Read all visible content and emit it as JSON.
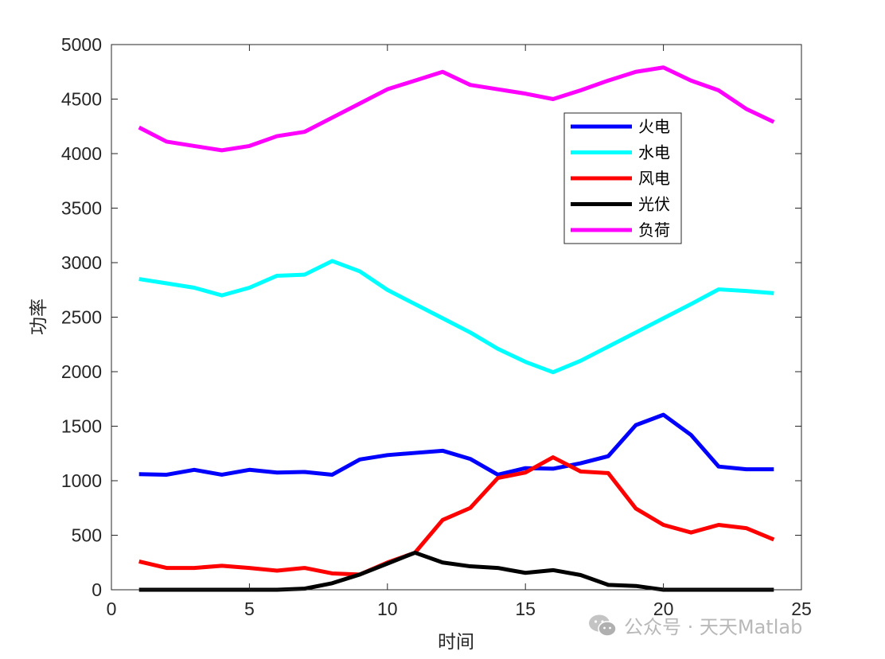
{
  "chart_data": {
    "type": "line",
    "xlabel": "时间",
    "ylabel": "功率",
    "xlim": [
      0,
      25
    ],
    "ylim": [
      0,
      5000
    ],
    "xticks": [
      0,
      5,
      10,
      15,
      20,
      25
    ],
    "yticks": [
      0,
      500,
      1000,
      1500,
      2000,
      2500,
      3000,
      3500,
      4000,
      4500,
      5000
    ],
    "grid": false,
    "legend_position": "upper-right-inside",
    "x": [
      1,
      2,
      3,
      4,
      5,
      6,
      7,
      8,
      9,
      10,
      11,
      12,
      13,
      14,
      15,
      16,
      17,
      18,
      19,
      20,
      21,
      22,
      23,
      24
    ],
    "series": [
      {
        "name": "火电",
        "color": "#0000ff",
        "values": [
          1060,
          1055,
          1100,
          1055,
          1100,
          1075,
          1080,
          1055,
          1195,
          1235,
          1255,
          1275,
          1200,
          1055,
          1115,
          1110,
          1160,
          1225,
          1510,
          1605,
          1420,
          1130,
          1105,
          1105
        ]
      },
      {
        "name": "水电",
        "color": "#00ffff",
        "values": [
          2850,
          2810,
          2770,
          2700,
          2770,
          2880,
          2890,
          3015,
          2920,
          2750,
          2620,
          2490,
          2360,
          2210,
          2090,
          1995,
          2100,
          2230,
          2360,
          2490,
          2620,
          2755,
          2740,
          2720
        ]
      },
      {
        "name": "风电",
        "color": "#ff0000",
        "values": [
          260,
          200,
          200,
          220,
          200,
          175,
          200,
          150,
          140,
          250,
          340,
          640,
          750,
          1025,
          1075,
          1215,
          1085,
          1070,
          745,
          595,
          525,
          595,
          565,
          460
        ]
      },
      {
        "name": "光伏",
        "color": "#000000",
        "values": [
          0,
          0,
          0,
          0,
          0,
          0,
          10,
          60,
          140,
          240,
          340,
          250,
          215,
          200,
          155,
          180,
          135,
          45,
          35,
          0,
          0,
          0,
          0,
          0
        ]
      },
      {
        "name": "负荷",
        "color": "#ff00ff",
        "values": [
          4240,
          4110,
          4070,
          4030,
          4070,
          4160,
          4200,
          4330,
          4460,
          4590,
          4670,
          4750,
          4630,
          4590,
          4550,
          4500,
          4580,
          4670,
          4750,
          4790,
          4670,
          4580,
          4410,
          4290
        ]
      }
    ]
  },
  "watermark": {
    "icon": "wechat-icon",
    "text": "公众号 · 天天Matlab"
  }
}
